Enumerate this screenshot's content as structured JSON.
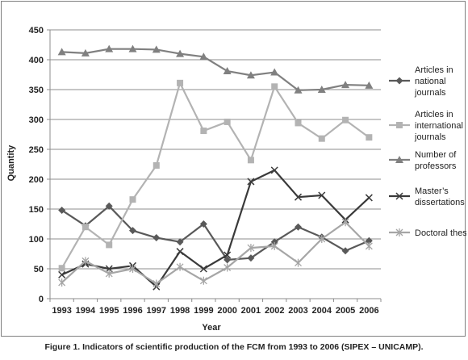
{
  "caption": "Figure 1. Indicators of scientific production of the FCM from 1993 to 2006 (SIPEX – UNICAMP).",
  "chart_data": {
    "type": "line",
    "title": "",
    "xlabel": "Year",
    "ylabel": "Quantity",
    "ylim": [
      0,
      450
    ],
    "yticks": [
      0,
      50,
      100,
      150,
      200,
      250,
      300,
      350,
      400,
      450
    ],
    "grid": "horizontal",
    "legend_position": "right",
    "categories": [
      "1993",
      "1994",
      "1995",
      "1996",
      "1997",
      "1998",
      "1999",
      "2000",
      "2001",
      "2002",
      "2003",
      "2004",
      "2005",
      "2006"
    ],
    "series": [
      {
        "name": "Articles in national journals",
        "legend_lines": [
          "Articles in",
          "national",
          "journals"
        ],
        "marker": "diamond",
        "color": "#595959",
        "values": [
          148,
          122,
          155,
          114,
          102,
          95,
          125,
          65,
          68,
          95,
          120,
          103,
          80,
          97
        ]
      },
      {
        "name": "Articles in international journals",
        "legend_lines": [
          "Articles in",
          "international",
          "journals"
        ],
        "marker": "square",
        "color": "#b3b3b3",
        "values": [
          51,
          120,
          90,
          166,
          223,
          361,
          281,
          296,
          232,
          355,
          294,
          268,
          299,
          270
        ]
      },
      {
        "name": "Number of professors",
        "legend_lines": [
          "Number of",
          "professors"
        ],
        "marker": "triangle",
        "color": "#808080",
        "values": [
          413,
          411,
          418,
          418,
          417,
          410,
          405,
          381,
          374,
          379,
          349,
          350,
          358,
          357
        ]
      },
      {
        "name": "Master's dissertations",
        "legend_lines": [
          "Master’s",
          "dissertations"
        ],
        "marker": "x",
        "color": "#3a3a3a",
        "values": [
          40,
          58,
          50,
          55,
          20,
          79,
          50,
          73,
          196,
          215,
          170,
          173,
          132,
          169
        ]
      },
      {
        "name": "Doctoral theses",
        "legend_lines": [
          "Doctoral theses"
        ],
        "marker": "star",
        "color": "#a6a6a6",
        "values": [
          27,
          63,
          42,
          50,
          25,
          53,
          30,
          52,
          85,
          88,
          60,
          100,
          128,
          88
        ]
      }
    ]
  }
}
